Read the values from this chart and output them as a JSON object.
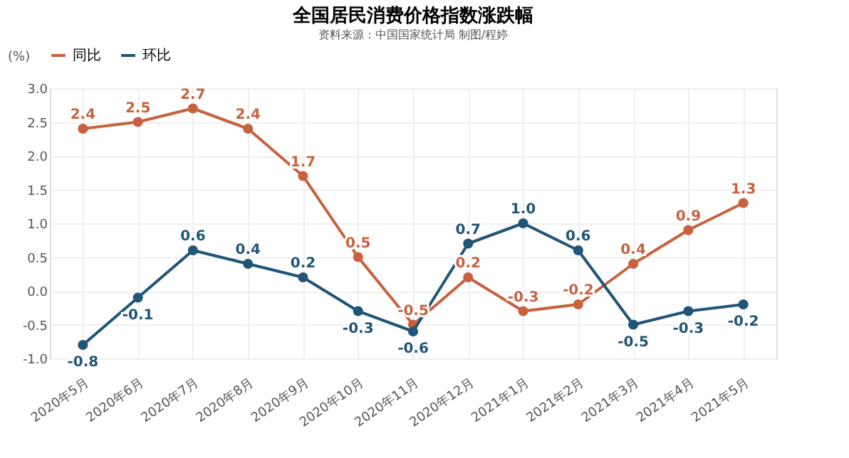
{
  "chart_data": {
    "type": "line",
    "title": "全国居民消费价格指数涨跌幅",
    "subtitle": "资料来源：中国国家统计局      制图/程婷",
    "ylabel": "(%)",
    "categories": [
      "2020年5月",
      "2020年6月",
      "2020年7月",
      "2020年8月",
      "2020年9月",
      "2020年10月",
      "2020年11月",
      "2020年12月",
      "2021年1月",
      "2021年2月",
      "2021年3月",
      "2021年4月",
      "2021年5月"
    ],
    "series": [
      {
        "name": "同比",
        "color": "#c8623e",
        "values": [
          2.4,
          2.5,
          2.7,
          2.4,
          1.7,
          0.5,
          -0.5,
          0.2,
          -0.3,
          -0.2,
          0.4,
          0.9,
          1.3
        ],
        "value_labels": [
          "2.4",
          "2.5",
          "2.7",
          "2.4",
          "1.7",
          "0.5",
          "-0.5",
          "0.2",
          "-0.3",
          "-0.2",
          "0.4",
          "0.9",
          "1.3"
        ]
      },
      {
        "name": "环比",
        "color": "#1f5577",
        "values": [
          -0.8,
          -0.1,
          0.6,
          0.4,
          0.2,
          -0.3,
          -0.6,
          0.7,
          1.0,
          0.6,
          -0.5,
          -0.3,
          -0.2
        ],
        "value_labels": [
          "-0.8",
          "-0.1",
          "0.6",
          "0.4",
          "0.2",
          "-0.3",
          "-0.6",
          "0.7",
          "1.0",
          "0.6",
          "-0.5",
          "-0.3",
          "-0.2"
        ]
      }
    ],
    "ylim": [
      -1.0,
      3.0
    ],
    "yticks": [
      {
        "value": -1,
        "label": "-1.0"
      },
      {
        "value": -0.5,
        "label": "-0.5"
      },
      {
        "value": 0,
        "label": "0.0"
      },
      {
        "value": 0.5,
        "label": "0.5"
      },
      {
        "value": 1,
        "label": "1.0"
      },
      {
        "value": 1.5,
        "label": "1.5"
      },
      {
        "value": 2,
        "label": "2.0"
      },
      {
        "value": 2.5,
        "label": "2.5"
      },
      {
        "value": 3,
        "label": "3.0"
      }
    ],
    "grid": true,
    "legend": "top left",
    "marker": "circle",
    "line_style": "solid"
  }
}
